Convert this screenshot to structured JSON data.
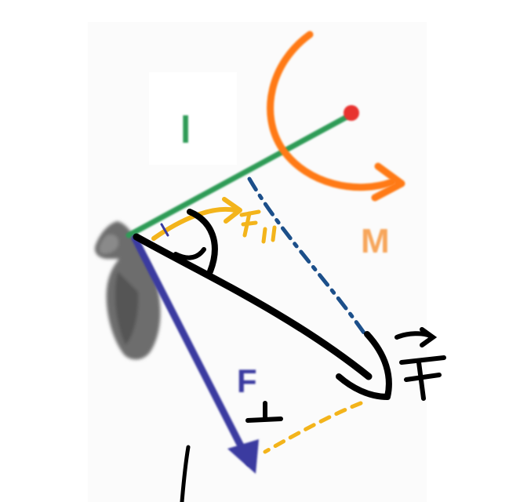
{
  "diagram": {
    "labels": {
      "lever_arm": "l",
      "moment": "M",
      "perpendicular_force": "F",
      "perpendicular_symbol": "⊥"
    },
    "handwritten": {
      "parallel_component": "F∥",
      "applied_force": "F"
    },
    "colors": {
      "lever_arm": "#2e9b57",
      "moment": "#ff7a14",
      "moment_label": "#f7a55a",
      "pivot_point": "#e8322f",
      "perpendicular_force": "#3a3aa0",
      "applied_force": "#000000",
      "parallel_component": "#f3b41b",
      "dashed_projection": "#1c4f8a",
      "dashed_perpendicular": "#f3b41b",
      "background_panel": "#fbfbfb",
      "bone": "#6d6d6d"
    },
    "icons": [
      "angle-arc-icon",
      "rotation-arrow-icon",
      "bone-shape-icon"
    ]
  }
}
